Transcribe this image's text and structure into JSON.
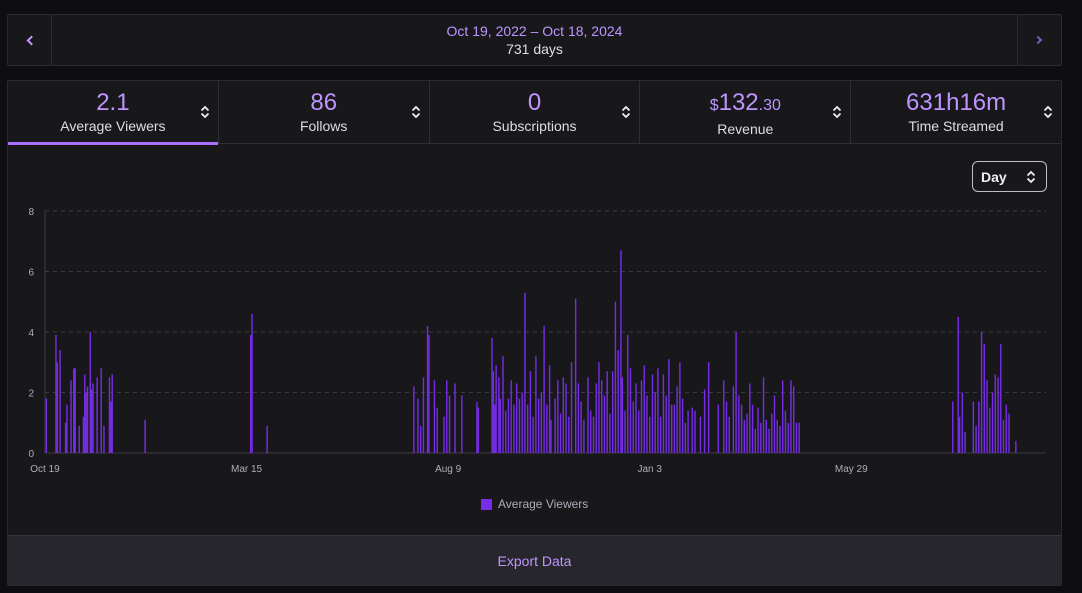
{
  "range": {
    "prev_icon": "chevron-left-icon",
    "next_icon": "chevron-right-icon",
    "dates": "Oct 19, 2022 – Oct 18, 2024",
    "days": "731 days"
  },
  "metrics": [
    {
      "value": "2.1",
      "label": "Average Viewers",
      "active": true
    },
    {
      "value": "86",
      "label": "Follows",
      "active": false
    },
    {
      "value": "0",
      "label": "Subscriptions",
      "active": false
    },
    {
      "currency": "$",
      "value": "132",
      "cents": ".30",
      "label": "Revenue",
      "active": false
    },
    {
      "value": "631h16m",
      "label": "Time Streamed",
      "active": false
    }
  ],
  "interval_select": {
    "value": "Day"
  },
  "export_label": "Export Data",
  "colors": {
    "accent": "#bf94ff",
    "bar": "#772ce8",
    "active_tab": "#a970ff"
  },
  "chart_data": {
    "type": "bar",
    "x_axis": "date",
    "x_start": "Oct 19",
    "xlim": [
      0,
      730
    ],
    "ylim": [
      0,
      8
    ],
    "yticks": [
      0,
      2,
      4,
      6,
      8
    ],
    "xticks": [
      {
        "day": 0,
        "label": "Oct 19"
      },
      {
        "day": 147,
        "label": "Mar 15"
      },
      {
        "day": 294,
        "label": "Aug 9"
      },
      {
        "day": 441,
        "label": "Jan 3"
      },
      {
        "day": 588,
        "label": "May 29"
      }
    ],
    "grid": "dashed-horizontal",
    "legend_position": "bottom",
    "series": [
      {
        "name": "Average Viewers",
        "points": [
          [
            1,
            1.8
          ],
          [
            8,
            3.9
          ],
          [
            9,
            3.0
          ],
          [
            11,
            3.4
          ],
          [
            15,
            1.0
          ],
          [
            16,
            1.6
          ],
          [
            19,
            2.4
          ],
          [
            21,
            2.8
          ],
          [
            22,
            2.8
          ],
          [
            25,
            0.9
          ],
          [
            28,
            1.2
          ],
          [
            29,
            2.6
          ],
          [
            30,
            2.0
          ],
          [
            31,
            2.2
          ],
          [
            33,
            4.0
          ],
          [
            34,
            2.1
          ],
          [
            35,
            2.3
          ],
          [
            38,
            2.5
          ],
          [
            41,
            2.8
          ],
          [
            43,
            0.9
          ],
          [
            47,
            2.5
          ],
          [
            48,
            1.7
          ],
          [
            49,
            2.6
          ],
          [
            73,
            1.1
          ],
          [
            150,
            3.9
          ],
          [
            151,
            4.6
          ],
          [
            162,
            0.9
          ],
          [
            269,
            2.2
          ],
          [
            272,
            1.8
          ],
          [
            274,
            0.9
          ],
          [
            276,
            2.5
          ],
          [
            279,
            4.2
          ],
          [
            280,
            3.9
          ],
          [
            284,
            2.4
          ],
          [
            286,
            1.5
          ],
          [
            291,
            1.2
          ],
          [
            293,
            2.4
          ],
          [
            295,
            1.9
          ],
          [
            299,
            2.3
          ],
          [
            304,
            1.9
          ],
          [
            315,
            1.7
          ],
          [
            316,
            1.5
          ],
          [
            326,
            3.8
          ],
          [
            327,
            2.7
          ],
          [
            328,
            1.6
          ],
          [
            329,
            2.9
          ],
          [
            331,
            2.5
          ],
          [
            332,
            1.8
          ],
          [
            334,
            3.2
          ],
          [
            336,
            1.4
          ],
          [
            338,
            1.8
          ],
          [
            340,
            2.4
          ],
          [
            342,
            1.6
          ],
          [
            344,
            2.3
          ],
          [
            346,
            1.8
          ],
          [
            348,
            2.0
          ],
          [
            350,
            5.3
          ],
          [
            352,
            1.6
          ],
          [
            354,
            2.7
          ],
          [
            356,
            1.2
          ],
          [
            358,
            3.2
          ],
          [
            360,
            1.8
          ],
          [
            362,
            2.0
          ],
          [
            364,
            4.2
          ],
          [
            366,
            1.6
          ],
          [
            368,
            2.9
          ],
          [
            369,
            1.1
          ],
          [
            372,
            1.8
          ],
          [
            374,
            2.4
          ],
          [
            376,
            1.3
          ],
          [
            378,
            2.5
          ],
          [
            380,
            2.3
          ],
          [
            382,
            1.2
          ],
          [
            384,
            3.0
          ],
          [
            387,
            5.1
          ],
          [
            389,
            2.3
          ],
          [
            391,
            1.7
          ],
          [
            393,
            1.1
          ],
          [
            396,
            2.5
          ],
          [
            398,
            1.4
          ],
          [
            400,
            1.2
          ],
          [
            402,
            2.3
          ],
          [
            404,
            3.0
          ],
          [
            406,
            2.4
          ],
          [
            408,
            1.9
          ],
          [
            410,
            2.7
          ],
          [
            412,
            1.3
          ],
          [
            414,
            2.7
          ],
          [
            416,
            5.0
          ],
          [
            418,
            3.4
          ],
          [
            420,
            6.7
          ],
          [
            421,
            2.5
          ],
          [
            423,
            1.4
          ],
          [
            425,
            3.9
          ],
          [
            427,
            2.8
          ],
          [
            429,
            1.7
          ],
          [
            431,
            2.3
          ],
          [
            433,
            1.4
          ],
          [
            435,
            2.4
          ],
          [
            437,
            2.9
          ],
          [
            439,
            1.9
          ],
          [
            441,
            1.2
          ],
          [
            443,
            2.6
          ],
          [
            445,
            2.0
          ],
          [
            447,
            2.8
          ],
          [
            449,
            1.2
          ],
          [
            451,
            2.6
          ],
          [
            453,
            1.9
          ],
          [
            455,
            3.1
          ],
          [
            457,
            1.6
          ],
          [
            459,
            1.6
          ],
          [
            461,
            2.2
          ],
          [
            463,
            3.0
          ],
          [
            465,
            1.8
          ],
          [
            467,
            1.0
          ],
          [
            469,
            1.4
          ],
          [
            472,
            1.5
          ],
          [
            474,
            1.4
          ],
          [
            478,
            1.2
          ],
          [
            481,
            2.1
          ],
          [
            484,
            3.0
          ],
          [
            491,
            1.6
          ],
          [
            495,
            2.4
          ],
          [
            497,
            1.7
          ],
          [
            499,
            1.2
          ],
          [
            502,
            2.2
          ],
          [
            504,
            4.0
          ],
          [
            506,
            1.9
          ],
          [
            508,
            1.6
          ],
          [
            510,
            1.1
          ],
          [
            512,
            1.3
          ],
          [
            514,
            2.3
          ],
          [
            516,
            1.6
          ],
          [
            518,
            0.8
          ],
          [
            520,
            1.5
          ],
          [
            522,
            1.0
          ],
          [
            524,
            2.5
          ],
          [
            526,
            1.1
          ],
          [
            528,
            0.8
          ],
          [
            530,
            1.3
          ],
          [
            532,
            1.9
          ],
          [
            534,
            1.1
          ],
          [
            536,
            0.9
          ],
          [
            538,
            2.4
          ],
          [
            540,
            1.4
          ],
          [
            542,
            1.0
          ],
          [
            544,
            2.4
          ],
          [
            546,
            2.2
          ],
          [
            548,
            1.0
          ],
          [
            550,
            1.0
          ],
          [
            662,
            1.7
          ],
          [
            666,
            4.5
          ],
          [
            667,
            1.2
          ],
          [
            669,
            2.0
          ],
          [
            671,
            0.7
          ],
          [
            677,
            1.7
          ],
          [
            679,
            0.9
          ],
          [
            681,
            1.7
          ],
          [
            683,
            4.0
          ],
          [
            685,
            3.6
          ],
          [
            687,
            2.4
          ],
          [
            689,
            1.5
          ],
          [
            691,
            2.0
          ],
          [
            693,
            2.6
          ],
          [
            695,
            2.5
          ],
          [
            697,
            3.6
          ],
          [
            699,
            1.1
          ],
          [
            701,
            1.6
          ],
          [
            703,
            1.3
          ],
          [
            708,
            0.4
          ]
        ]
      }
    ]
  }
}
